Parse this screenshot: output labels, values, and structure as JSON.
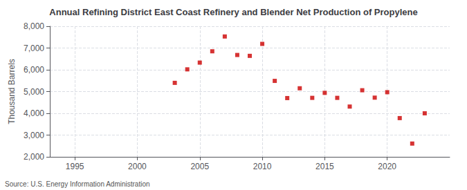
{
  "chart_data": {
    "type": "scatter",
    "title": "Annual Refining District East Coast Refinery and Blender Net Production of Propylene",
    "ylabel": "Thousand Barrels",
    "source": "Source: U.S. Energy Information Administration",
    "x": [
      2003,
      2004,
      2005,
      2006,
      2007,
      2008,
      2009,
      2010,
      2011,
      2012,
      2013,
      2014,
      2015,
      2016,
      2017,
      2018,
      2019,
      2020,
      2021,
      2022,
      2023
    ],
    "values": [
      5400,
      6020,
      6330,
      6850,
      7530,
      6680,
      6640,
      7190,
      5490,
      4700,
      5150,
      4710,
      4940,
      4710,
      4310,
      5060,
      4720,
      4970,
      3780,
      2610,
      4000
    ],
    "color": "#cc0000",
    "marker": "square",
    "xlim": [
      1993,
      2025
    ],
    "xticks": [
      1995,
      2000,
      2005,
      2010,
      2015,
      2020
    ],
    "ylim": [
      2000,
      8000
    ],
    "yticks": [
      {
        "value": 2000,
        "label": "2,000"
      },
      {
        "value": 3000,
        "label": "3,000"
      },
      {
        "value": 4000,
        "label": "4,000"
      },
      {
        "value": 5000,
        "label": "5,000"
      },
      {
        "value": 6000,
        "label": "6,000"
      },
      {
        "value": 7000,
        "label": "7,000"
      },
      {
        "value": 8000,
        "label": "8,000"
      }
    ],
    "grid": true
  }
}
